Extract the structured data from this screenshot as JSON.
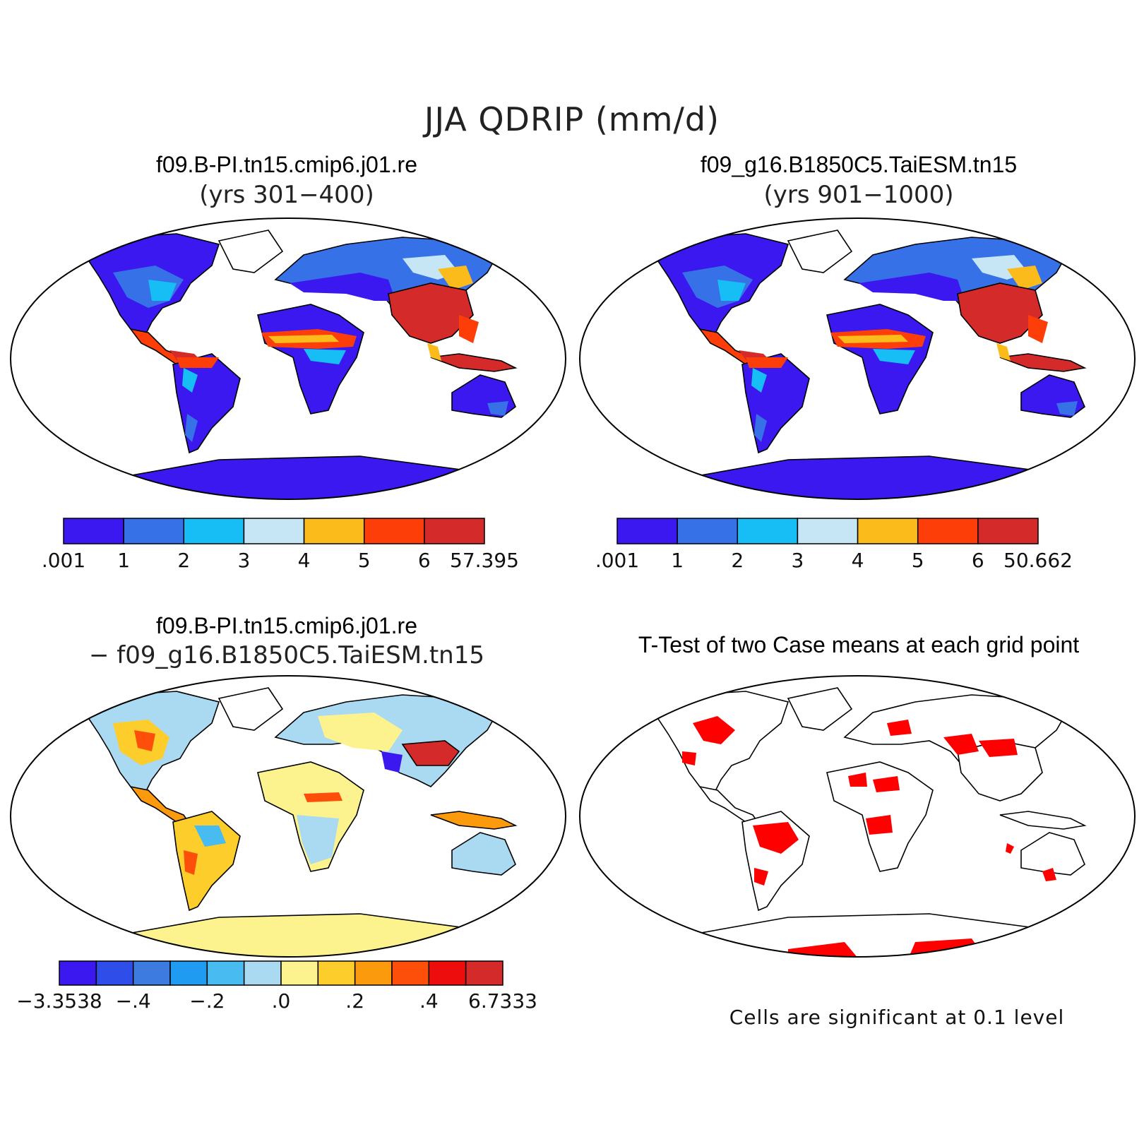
{
  "figure": {
    "title": "JJA QDRIP (mm/d)"
  },
  "panels": [
    {
      "id": "case1",
      "title": "f09.B-PI.tn15.cmip6.j01.re",
      "subtitle": "(yrs 301−400)"
    },
    {
      "id": "case2",
      "title": "f09_g16.B1850C5.TaiESM.tn15",
      "subtitle": "(yrs 901−1000)"
    },
    {
      "id": "diff",
      "title": "f09.B-PI.tn15.cmip6.j01.re",
      "subtitle": "− f09_g16.B1850C5.TaiESM.tn15"
    },
    {
      "id": "ttest",
      "title": "T-Test of two Case means at each grid point",
      "note": "Cells are significant at 0.1 level"
    }
  ],
  "colorbars": {
    "case1": {
      "colors": [
        "#3a18ef",
        "#3671e8",
        "#17bdf5",
        "#c6e6f6",
        "#fbbb1a",
        "#fe3e08",
        "#d52a2a"
      ],
      "labels": [
        ".001",
        "1",
        "2",
        "3",
        "4",
        "5",
        "6",
        "57.395"
      ]
    },
    "case2": {
      "colors": [
        "#3a18ef",
        "#3671e8",
        "#17bdf5",
        "#c6e6f6",
        "#fbbb1a",
        "#fe3e08",
        "#d52a2a"
      ],
      "labels": [
        ".001",
        "1",
        "2",
        "3",
        "4",
        "5",
        "6",
        "50.662"
      ]
    },
    "diff": {
      "colors": [
        "#3a18ef",
        "#2f4de8",
        "#3d7be0",
        "#1f9cf2",
        "#48bcf0",
        "#a9daf2",
        "#fdf38e",
        "#fccd2b",
        "#fc9a0d",
        "#fd4f0a",
        "#ee0d0d",
        "#d52a2a"
      ],
      "labels": [
        "−3.3538",
        "−.4",
        "−.2",
        ".0",
        ".2",
        ".4",
        "6.7333"
      ]
    }
  },
  "map_colors": {
    "ocean": "#ffffff",
    "outline": "#000000",
    "significance": "#ff0000"
  }
}
